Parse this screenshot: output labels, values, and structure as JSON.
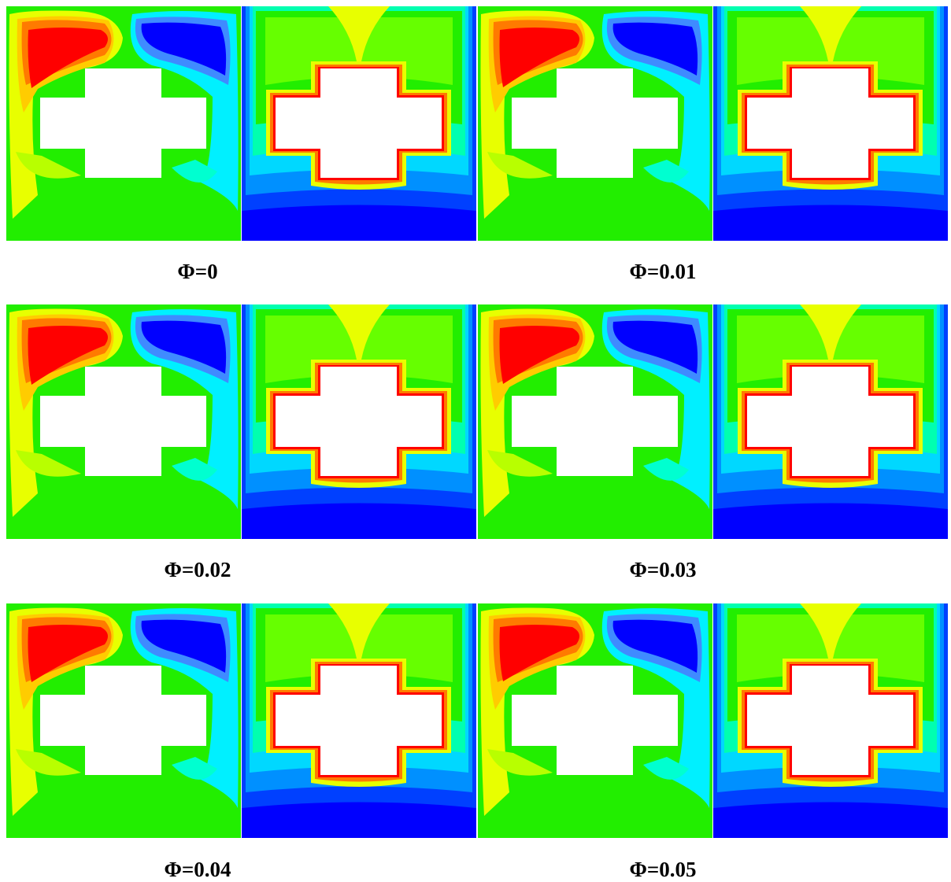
{
  "figure": {
    "captions": [
      "Φ=0",
      "Φ=0.01",
      "Φ=0.02",
      "Φ=0.03",
      "Φ=0.04",
      "Φ=0.05"
    ],
    "panel_types": [
      "streamline-contours",
      "isotherm-contours"
    ],
    "colors": {
      "red": "#ff0000",
      "orange": "#ff7a00",
      "yellow": "#e8ff00",
      "green": "#22ee00",
      "cyan": "#00f0ff",
      "blue": "#0000ff",
      "white": "#ffffff"
    }
  }
}
